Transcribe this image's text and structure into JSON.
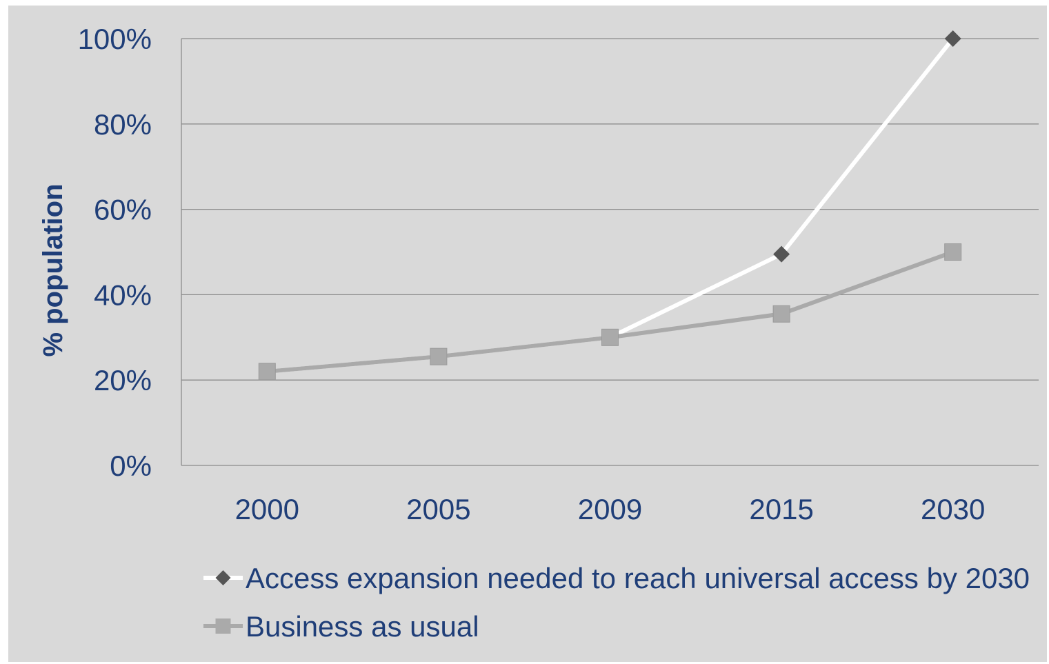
{
  "chart_data": {
    "type": "line",
    "xlabel": "",
    "ylabel": "% population",
    "categories": [
      "2000",
      "2005",
      "2009",
      "2015",
      "2030"
    ],
    "ylim": [
      0,
      100
    ],
    "yticks": [
      "0%",
      "20%",
      "40%",
      "60%",
      "80%",
      "100%"
    ],
    "grid": true,
    "legend_position": "bottom",
    "series": [
      {
        "name": "Access expansion needed to reach universal access by 2030",
        "values": [
          22,
          25.5,
          30,
          49.5,
          100
        ],
        "color": "#ffffff",
        "marker": "diamond",
        "marker_color": "#555555"
      },
      {
        "name": "Business as usual",
        "values": [
          22,
          25.5,
          30,
          35.5,
          50
        ],
        "color": "#aaaaaa",
        "marker": "square",
        "marker_color": "#aaaaaa"
      }
    ]
  }
}
